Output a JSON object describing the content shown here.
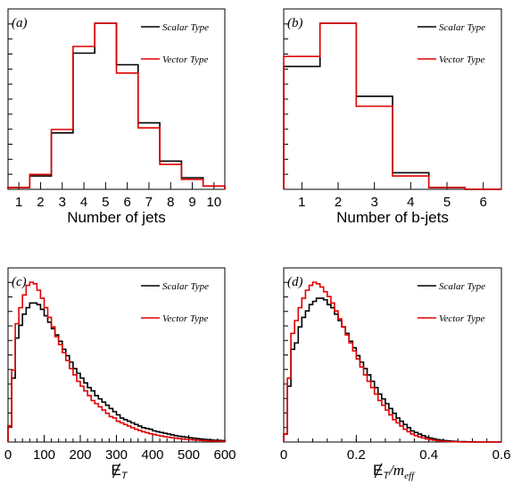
{
  "chart_data": [
    {
      "type": "histogram",
      "panel_label": "(a)",
      "xlabel": "Number of jets",
      "xlim": [
        0.5,
        10.5
      ],
      "ylim": [
        0,
        1.0
      ],
      "xticks": [
        "1",
        "2",
        "3",
        "4",
        "5",
        "6",
        "7",
        "8",
        "9",
        "10"
      ],
      "tick_values": [
        1,
        2,
        3,
        4,
        5,
        6,
        7,
        8,
        9,
        10
      ],
      "legend": {
        "placement": "top-right",
        "entries": [
          "Scalar Type",
          "Vector Type"
        ]
      },
      "bin_edges": [
        0.5,
        1.5,
        2.5,
        3.5,
        4.5,
        5.5,
        6.5,
        7.5,
        8.5,
        9.5,
        10.5
      ],
      "series": [
        {
          "name": "Scalar Type",
          "color": "#000000",
          "values": [
            0.01,
            0.08,
            0.34,
            0.82,
            1.0,
            0.75,
            0.4,
            0.17,
            0.07,
            0.02
          ]
        },
        {
          "name": "Vector Type",
          "color": "#e00000",
          "values": [
            0.01,
            0.09,
            0.36,
            0.86,
            1.0,
            0.7,
            0.37,
            0.15,
            0.06,
            0.02
          ]
        }
      ]
    },
    {
      "type": "histogram",
      "panel_label": "(b)",
      "xlabel": "Number of b-jets",
      "xlim": [
        0.5,
        6.5
      ],
      "ylim": [
        0,
        1.0
      ],
      "xticks": [
        "1",
        "2",
        "3",
        "4",
        "5",
        "6"
      ],
      "tick_values": [
        1,
        2,
        3,
        4,
        5,
        6
      ],
      "legend": {
        "placement": "top-right",
        "entries": [
          "Scalar Type",
          "Vector Type"
        ]
      },
      "bin_edges": [
        0.5,
        1.5,
        2.5,
        3.5,
        4.5,
        5.5,
        6.5
      ],
      "series": [
        {
          "name": "Scalar Type",
          "color": "#000000",
          "values": [
            0.74,
            1.0,
            0.56,
            0.1,
            0.01,
            0.0
          ]
        },
        {
          "name": "Vector Type",
          "color": "#e00000",
          "values": [
            0.8,
            1.0,
            0.5,
            0.08,
            0.01,
            0.0
          ]
        }
      ]
    },
    {
      "type": "histogram",
      "panel_label": "(c)",
      "xlabel_main": "E",
      "xlabel_sub": "T",
      "xlim": [
        0,
        600
      ],
      "ylim": [
        0,
        1.0
      ],
      "xticks": [
        "0",
        "100",
        "200",
        "300",
        "400",
        "500",
        "600"
      ],
      "tick_values": [
        0,
        100,
        200,
        300,
        400,
        500,
        600
      ],
      "legend": {
        "placement": "top-right",
        "entries": [
          "Scalar Type",
          "Vector Type"
        ]
      },
      "bin_width": 10,
      "series": [
        {
          "name": "Scalar Type",
          "color": "#000000",
          "values": [
            0.1,
            0.4,
            0.65,
            0.73,
            0.8,
            0.84,
            0.87,
            0.87,
            0.86,
            0.83,
            0.79,
            0.75,
            0.71,
            0.67,
            0.63,
            0.58,
            0.54,
            0.5,
            0.46,
            0.43,
            0.4,
            0.37,
            0.34,
            0.32,
            0.29,
            0.27,
            0.25,
            0.23,
            0.21,
            0.19,
            0.17,
            0.15,
            0.14,
            0.13,
            0.12,
            0.11,
            0.1,
            0.09,
            0.085,
            0.08,
            0.07,
            0.065,
            0.06,
            0.055,
            0.05,
            0.045,
            0.04,
            0.036,
            0.033,
            0.03,
            0.027,
            0.024,
            0.021,
            0.019,
            0.017,
            0.015,
            0.013,
            0.011,
            0.01,
            0.009
          ]
        },
        {
          "name": "Vector Type",
          "color": "#e00000",
          "values": [
            0.1,
            0.45,
            0.74,
            0.84,
            0.92,
            0.98,
            1.0,
            0.99,
            0.95,
            0.9,
            0.84,
            0.78,
            0.72,
            0.66,
            0.61,
            0.56,
            0.51,
            0.46,
            0.42,
            0.38,
            0.35,
            0.32,
            0.29,
            0.26,
            0.24,
            0.22,
            0.2,
            0.18,
            0.16,
            0.15,
            0.13,
            0.12,
            0.11,
            0.1,
            0.09,
            0.08,
            0.072,
            0.065,
            0.058,
            0.052,
            0.047,
            0.042,
            0.038,
            0.034,
            0.03,
            0.027,
            0.024,
            0.021,
            0.019,
            0.017,
            0.015,
            0.013,
            0.011,
            0.01,
            0.009,
            0.008,
            0.007,
            0.006,
            0.005,
            0.004
          ]
        }
      ]
    },
    {
      "type": "histogram",
      "panel_label": "(d)",
      "xlabel_main": "E",
      "xlabel_sub": "T",
      "xlabel_suffix": "/m",
      "xlabel_suffix_sub": "eff",
      "xlim": [
        0,
        0.6
      ],
      "ylim": [
        0,
        1.0
      ],
      "xticks": [
        "0",
        "0.2",
        "0.4",
        "0.6"
      ],
      "tick_values": [
        0,
        0.2,
        0.4,
        0.6
      ],
      "legend": {
        "placement": "top-right",
        "entries": [
          "Scalar Type",
          "Vector Type"
        ]
      },
      "bin_width": 0.01,
      "series": [
        {
          "name": "Scalar Type",
          "color": "#000000",
          "values": [
            0.05,
            0.35,
            0.58,
            0.62,
            0.72,
            0.78,
            0.82,
            0.86,
            0.88,
            0.9,
            0.9,
            0.89,
            0.86,
            0.84,
            0.8,
            0.76,
            0.72,
            0.68,
            0.63,
            0.59,
            0.54,
            0.5,
            0.46,
            0.42,
            0.38,
            0.34,
            0.3,
            0.27,
            0.24,
            0.21,
            0.18,
            0.15,
            0.13,
            0.11,
            0.09,
            0.07,
            0.06,
            0.05,
            0.04,
            0.03,
            0.025,
            0.02,
            0.015,
            0.012,
            0.009,
            0.007,
            0.005,
            0.004,
            0.003,
            0.002,
            0.0015,
            0.001,
            0.001,
            0.0,
            0.0,
            0.0,
            0.0,
            0.0,
            0.0,
            0.0
          ]
        },
        {
          "name": "Vector Type",
          "color": "#e00000",
          "values": [
            0.05,
            0.4,
            0.68,
            0.76,
            0.84,
            0.9,
            0.95,
            0.98,
            1.0,
            0.99,
            0.97,
            0.94,
            0.91,
            0.87,
            0.82,
            0.77,
            0.72,
            0.67,
            0.62,
            0.57,
            0.52,
            0.47,
            0.42,
            0.38,
            0.34,
            0.3,
            0.26,
            0.23,
            0.2,
            0.17,
            0.14,
            0.12,
            0.1,
            0.08,
            0.065,
            0.05,
            0.04,
            0.032,
            0.025,
            0.019,
            0.015,
            0.011,
            0.008,
            0.006,
            0.004,
            0.003,
            0.002,
            0.0015,
            0.001,
            0.0,
            0.0,
            0.0,
            0.0,
            0.0,
            0.0,
            0.0,
            0.0,
            0.0,
            0.0,
            0.0
          ]
        }
      ]
    }
  ]
}
